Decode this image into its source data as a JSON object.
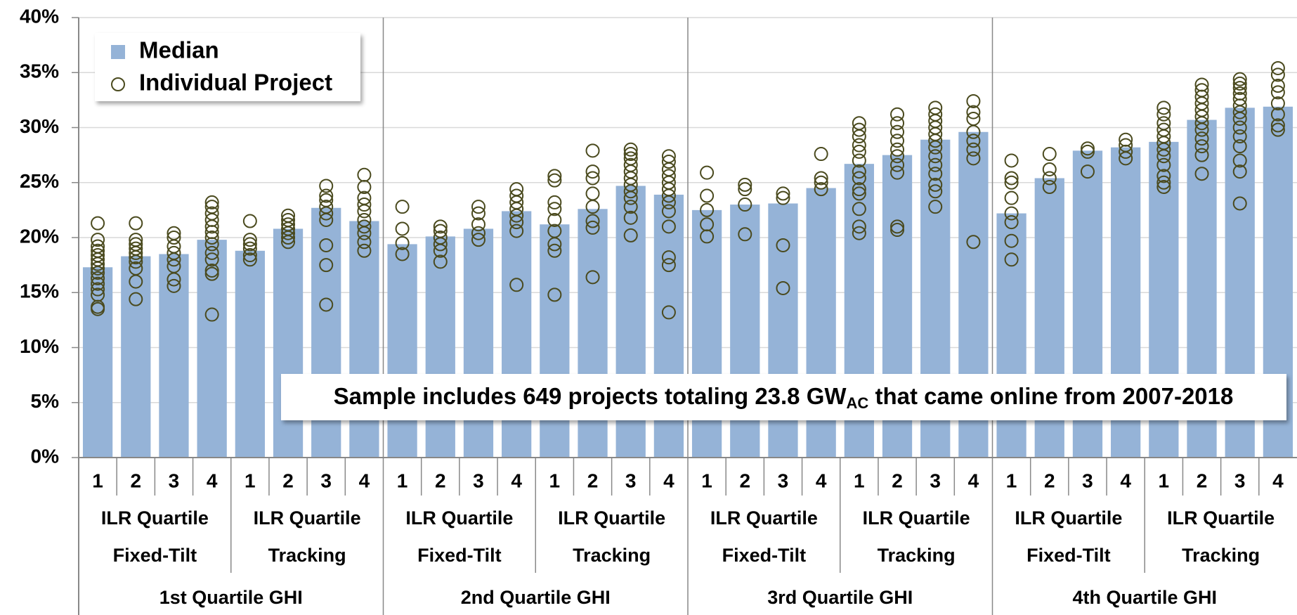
{
  "chart_data": {
    "type": "bar",
    "categories": [
      "1",
      "2",
      "3",
      "4",
      "1",
      "2",
      "3",
      "4",
      "1",
      "2",
      "3",
      "4",
      "1",
      "2",
      "3",
      "4",
      "1",
      "2",
      "3",
      "4",
      "1",
      "2",
      "3",
      "4",
      "1",
      "2",
      "3",
      "4",
      "1",
      "2",
      "3",
      "4"
    ],
    "ilr_groups": [
      "ILR Quartile",
      "ILR Quartile",
      "ILR Quartile",
      "ILR Quartile",
      "ILR Quartile",
      "ILR Quartile",
      "ILR Quartile",
      "ILR Quartile"
    ],
    "mount_groups": [
      "Fixed-Tilt",
      "Tracking",
      "Fixed-Tilt",
      "Tracking",
      "Fixed-Tilt",
      "Tracking",
      "Fixed-Tilt",
      "Tracking"
    ],
    "ghi_groups": [
      "1st Quartile GHI",
      "2nd Quartile GHI",
      "3rd Quartile GHI",
      "4th Quartile GHI"
    ],
    "ylim": [
      0,
      40
    ],
    "yticks": [
      {
        "value": 0,
        "label": "0%"
      },
      {
        "value": 5,
        "label": "5%"
      },
      {
        "value": 10,
        "label": "10%"
      },
      {
        "value": 15,
        "label": "15%"
      },
      {
        "value": 20,
        "label": "20%"
      },
      {
        "value": 25,
        "label": "25%"
      },
      {
        "value": 30,
        "label": "30%"
      },
      {
        "value": 35,
        "label": "35%"
      },
      {
        "value": 40,
        "label": "40%"
      }
    ],
    "grid": true,
    "legend": "top-left",
    "annotation": {
      "text": "Sample includes 649 projects totaling 23.8 GW",
      "subscript": "AC",
      "text_after": " that came online from 2007-2018"
    },
    "series": [
      {
        "name": "Median",
        "type": "bar",
        "color": "#95b3d7",
        "values": [
          17.3,
          18.3,
          18.5,
          19.8,
          18.8,
          20.8,
          22.7,
          21.5,
          19.4,
          20.1,
          20.8,
          22.4,
          21.2,
          22.6,
          24.7,
          23.9,
          22.5,
          23.0,
          23.1,
          24.5,
          26.7,
          27.5,
          28.9,
          29.6,
          22.2,
          25.4,
          27.9,
          28.2,
          28.7,
          30.7,
          31.8,
          31.9
        ]
      },
      {
        "name": "Individual Project",
        "type": "scatter",
        "color": "#4a4a1e",
        "values": [
          [
            21.3,
            19.8,
            19.2,
            18.8,
            18.4,
            18,
            17.6,
            17.2,
            16.8,
            16.3,
            15.8,
            15.3,
            14.8,
            13.7,
            13.5
          ],
          [
            21.3,
            19.8,
            19.4,
            19,
            18.6,
            18.2,
            17.8,
            17.2,
            16,
            14.4
          ],
          [
            20.4,
            20,
            19.2,
            18.6,
            18,
            17.4,
            16.2,
            15.6
          ],
          [
            23.2,
            22.8,
            22.2,
            21.6,
            21,
            20.5,
            20,
            19.4,
            18.6,
            18,
            17,
            16.7,
            13
          ],
          [
            21.5,
            19.8,
            19.4,
            19,
            18.4,
            18
          ],
          [
            22,
            21.6,
            21.2,
            20.8,
            20.4,
            20,
            19.6
          ],
          [
            24.7,
            23.8,
            23.4,
            22.8,
            22.2,
            21.6,
            19.3,
            17.5,
            13.9
          ],
          [
            25.7,
            24.6,
            23.6,
            23,
            22.4,
            21.6,
            21,
            20.4,
            19.6,
            18.8
          ],
          [
            22.8,
            20.8,
            19.5,
            18.5
          ],
          [
            21,
            20.6,
            20,
            19.4,
            18.8,
            17.8
          ],
          [
            22.8,
            22.2,
            21.2,
            20.4,
            19.8
          ],
          [
            24.4,
            23.8,
            23.2,
            22.6,
            22,
            21.4,
            20.6,
            15.7
          ],
          [
            25.6,
            25.2,
            23.2,
            22.6,
            21.6,
            20.6,
            19.4,
            18.8,
            14.8
          ],
          [
            27.9,
            26,
            25.4,
            24,
            22.8,
            21.5,
            20.9,
            16.4
          ],
          [
            28,
            27.6,
            27.2,
            26.6,
            26,
            25.4,
            24.8,
            24.2,
            23.6,
            22.8,
            21.8,
            20.2
          ],
          [
            27.4,
            26.9,
            26.2,
            25.6,
            25,
            24.4,
            23.8,
            23.2,
            22.4,
            21,
            18.2,
            17.5,
            13.2
          ],
          [
            25.9,
            23.8,
            22.5,
            21.2,
            20.1
          ],
          [
            24.8,
            24.4,
            23,
            20.3
          ],
          [
            24,
            23.6,
            19.3,
            15.4
          ],
          [
            27.6,
            25.4,
            25,
            24.4
          ],
          [
            30.4,
            29.8,
            29.2,
            28.4,
            27.8,
            27,
            26,
            25.4,
            24.4,
            24,
            22.6,
            21,
            20.4
          ],
          [
            31.2,
            30.4,
            29.6,
            28.8,
            28,
            27.4,
            26.6,
            25.9,
            21,
            20.7
          ],
          [
            31.8,
            31.2,
            30.6,
            30,
            29.4,
            28.8,
            28.2,
            27.4,
            26.6,
            25.8,
            24.8,
            24.2,
            22.8
          ],
          [
            32.4,
            31.4,
            30.8,
            29.6,
            28.8,
            28,
            27.2,
            19.6
          ],
          [
            27,
            25.4,
            25,
            23.6,
            22.2,
            21.4,
            19.7,
            18
          ],
          [
            27.6,
            26.2,
            25.4,
            24.6
          ],
          [
            28.1,
            27.8,
            26
          ],
          [
            28.9,
            28.4,
            27.8,
            27.2
          ],
          [
            31.8,
            31.2,
            30.4,
            29.8,
            29.2,
            28.6,
            28,
            27.4,
            26.6,
            25.6,
            25,
            24.6
          ],
          [
            33.9,
            33.4,
            32.8,
            32.2,
            31.6,
            31,
            30.4,
            29.8,
            29,
            28.3,
            27.5,
            25.8
          ],
          [
            34.4,
            34,
            33.6,
            33.1,
            32.6,
            32,
            31.4,
            30.8,
            30,
            29.2,
            28.3,
            27,
            26,
            23.1
          ],
          [
            35.4,
            34.8,
            33.8,
            33.2,
            32.2,
            31.2,
            30.2,
            29.8
          ]
        ]
      }
    ]
  }
}
